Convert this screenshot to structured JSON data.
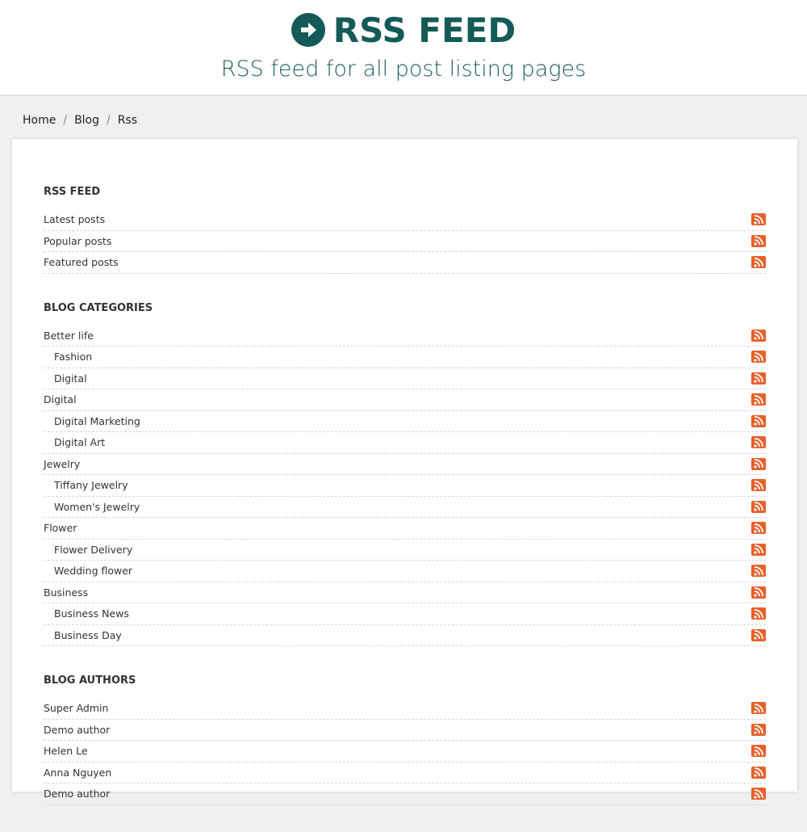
{
  "header": {
    "title": "RSS FEED",
    "subtitle": "RSS feed for all post listing pages",
    "icon": "arrow-circle-right-icon"
  },
  "breadcrumb": [
    "Home",
    "Blog",
    "Rss"
  ],
  "colors": {
    "brand": "#145a57",
    "rss": "#e8602a"
  },
  "sections": [
    {
      "title": "RSS FEED",
      "items": [
        {
          "label": "Latest posts",
          "level": 0
        },
        {
          "label": "Popular posts",
          "level": 0
        },
        {
          "label": "Featured posts",
          "level": 0
        }
      ]
    },
    {
      "title": "BLOG CATEGORIES",
      "items": [
        {
          "label": "Better life",
          "level": 0
        },
        {
          "label": "Fashion",
          "level": 1
        },
        {
          "label": "Digital",
          "level": 1
        },
        {
          "label": "Digital",
          "level": 0
        },
        {
          "label": "Digital Marketing",
          "level": 1
        },
        {
          "label": "Digital Art",
          "level": 1
        },
        {
          "label": "Jewelry",
          "level": 0
        },
        {
          "label": "Tiffany Jewelry",
          "level": 1
        },
        {
          "label": "Women's Jewelry",
          "level": 1
        },
        {
          "label": "Flower",
          "level": 0
        },
        {
          "label": "Flower Delivery",
          "level": 1
        },
        {
          "label": "Wedding flower",
          "level": 1
        },
        {
          "label": "Business",
          "level": 0
        },
        {
          "label": "Business News",
          "level": 1
        },
        {
          "label": "Business Day",
          "level": 1
        }
      ]
    },
    {
      "title": "BLOG AUTHORS",
      "items": [
        {
          "label": "Super Admin",
          "level": 0
        },
        {
          "label": "Demo author",
          "level": 0
        },
        {
          "label": "Helen Le",
          "level": 0
        },
        {
          "label": "Anna Nguyen",
          "level": 0
        },
        {
          "label": "Demo author",
          "level": 0
        }
      ]
    }
  ]
}
